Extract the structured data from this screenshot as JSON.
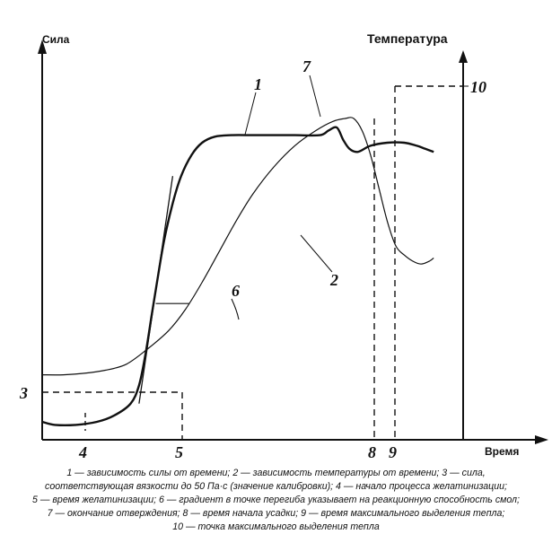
{
  "labels": {
    "force_axis": "Сила",
    "temperature_axis": "Температура",
    "time_axis": "Время"
  },
  "markers": {
    "curve_force": "1",
    "curve_temperature": "2",
    "force_calibration": "3",
    "gelation_start": "4",
    "gelation_time": "5",
    "inflection_gradient": "6",
    "cure_end": "7",
    "shrinkage_start": "8",
    "max_heat_time": "9",
    "max_heat_point": "10"
  },
  "caption": [
    "1 — зависимость силы от времени; 2 — зависимость температуры от времени; 3 — сила,",
    "соответствующая вязкости до 50 Па·с (значение калибровки); 4 — начало процесса желатинизации;",
    "5 — время желатинизации; 6 — градиент в точке перегиба указывает на реакционную способность смол;",
    "7 — окончание отверждения; 8 — время начала усадки; 9 — время максимального выделения тепла;",
    "10 — точка максимального выделения тепла"
  ],
  "curves": {
    "force": [
      [
        0,
        0.0
      ],
      [
        0.03,
        -0.01
      ],
      [
        0.08,
        -0.01
      ],
      [
        0.13,
        0.0
      ],
      [
        0.17,
        0.02
      ],
      [
        0.21,
        0.06
      ],
      [
        0.23,
        0.12
      ],
      [
        0.245,
        0.22
      ],
      [
        0.26,
        0.35
      ],
      [
        0.275,
        0.48
      ],
      [
        0.29,
        0.6
      ],
      [
        0.31,
        0.72
      ],
      [
        0.33,
        0.81
      ],
      [
        0.355,
        0.88
      ],
      [
        0.38,
        0.92
      ],
      [
        0.41,
        0.94
      ],
      [
        0.45,
        0.945
      ],
      [
        0.5,
        0.945
      ],
      [
        0.55,
        0.945
      ],
      [
        0.6,
        0.945
      ],
      [
        0.66,
        0.945
      ],
      [
        0.68,
        0.96
      ],
      [
        0.7,
        0.97
      ],
      [
        0.715,
        0.93
      ],
      [
        0.73,
        0.9
      ],
      [
        0.75,
        0.89
      ],
      [
        0.78,
        0.91
      ],
      [
        0.82,
        0.92
      ],
      [
        0.86,
        0.92
      ],
      [
        0.89,
        0.91
      ],
      [
        0.91,
        0.9
      ],
      [
        0.93,
        0.89
      ]
    ],
    "temperature": [
      [
        0,
        0.155
      ],
      [
        0.05,
        0.155
      ],
      [
        0.1,
        0.16
      ],
      [
        0.15,
        0.17
      ],
      [
        0.2,
        0.19
      ],
      [
        0.25,
        0.24
      ],
      [
        0.3,
        0.3
      ],
      [
        0.34,
        0.37
      ],
      [
        0.38,
        0.46
      ],
      [
        0.42,
        0.56
      ],
      [
        0.46,
        0.66
      ],
      [
        0.5,
        0.75
      ],
      [
        0.55,
        0.84
      ],
      [
        0.6,
        0.91
      ],
      [
        0.65,
        0.96
      ],
      [
        0.69,
        0.99
      ],
      [
        0.72,
        1.0
      ],
      [
        0.74,
        1.0
      ],
      [
        0.76,
        0.96
      ],
      [
        0.78,
        0.88
      ],
      [
        0.8,
        0.77
      ],
      [
        0.82,
        0.66
      ],
      [
        0.84,
        0.58
      ],
      [
        0.86,
        0.55
      ],
      [
        0.88,
        0.53
      ],
      [
        0.9,
        0.52
      ],
      [
        0.92,
        0.53
      ],
      [
        0.93,
        0.54
      ]
    ],
    "tangent": [
      [
        0.23,
        0.06
      ],
      [
        0.31,
        0.81
      ]
    ],
    "tangent_horizontal": [
      [
        0.27,
        0.39
      ],
      [
        0.35,
        0.39
      ]
    ]
  }
}
